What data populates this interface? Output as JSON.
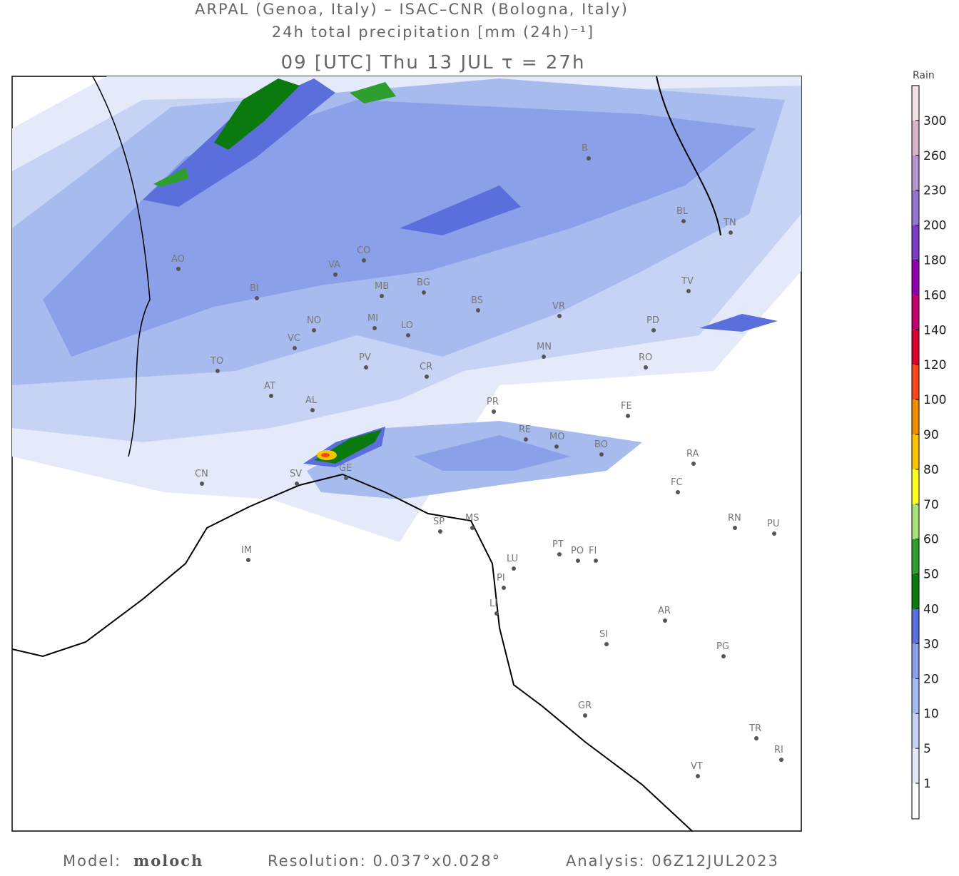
{
  "header": {
    "line1": "ARPAL (Genoa, Italy)  –  ISAC–CNR (Bologna, Italy)",
    "line2": "24h total precipitation [mm (24h)⁻¹]",
    "line3": "09 [UTC] Thu 13 JUL  τ = 27h"
  },
  "legend": {
    "title": "Rain",
    "levels": [
      1,
      5,
      10,
      20,
      30,
      40,
      50,
      60,
      70,
      80,
      90,
      100,
      120,
      140,
      160,
      180,
      200,
      230,
      260,
      300
    ],
    "colors": [
      "#ffffff",
      "#e4eafa",
      "#c6d3f4",
      "#a8bbee",
      "#8aa0e8",
      "#5a6edc",
      "#0a7a0e",
      "#2e9e2e",
      "#a8e07a",
      "#ffff20",
      "#f8c400",
      "#f08c00",
      "#f04818",
      "#d8002c",
      "#c0006c",
      "#9000b0",
      "#7a3cc4",
      "#9474cc",
      "#b496cc",
      "#d4b6c6",
      "#f2e0e4"
    ]
  },
  "cities": [
    "AO",
    "BI",
    "TO",
    "AT",
    "AL",
    "CN",
    "VC",
    "NO",
    "VA",
    "CO",
    "MI",
    "LO",
    "PV",
    "MB",
    "BG",
    "CR",
    "BS",
    "MN",
    "VR",
    "PD",
    "TV",
    "RO",
    "FE",
    "PR",
    "RE",
    "MO",
    "BO",
    "RA",
    "FC",
    "RN",
    "PU",
    "SV",
    "GE",
    "SP",
    "MS",
    "LU",
    "PI",
    "PT",
    "PO",
    "FI",
    "LI",
    "SI",
    "AR",
    "PG",
    "GR",
    "TR",
    "RI",
    "VT",
    "IM",
    "BL",
    "TN",
    "B"
  ],
  "footer": {
    "model_label": "Model:",
    "model": "moloch",
    "resolution": "Resolution: 0.037°x0.028°",
    "analysis": "Analysis: 06Z12JUL2023"
  }
}
